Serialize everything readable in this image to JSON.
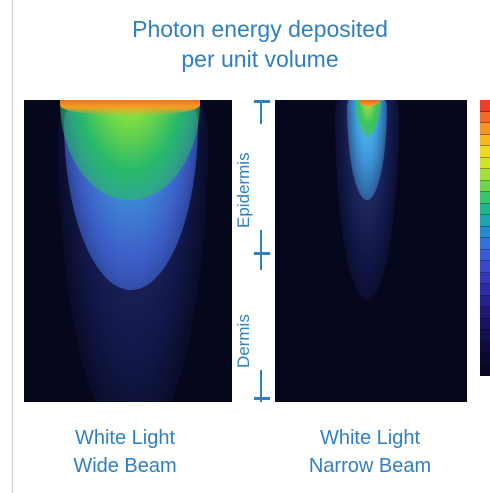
{
  "title": {
    "line1": "Photon energy deposited",
    "line2": "per unit volume"
  },
  "layers": {
    "upper": "Epidermis",
    "lower": "Dermis"
  },
  "panels": [
    {
      "line1": "White Light",
      "line2": "Wide Beam"
    },
    {
      "line1": "White Light",
      "line2": "Narrow Beam"
    }
  ],
  "colors": {
    "text": "#2f7fc2",
    "background": "#05081c",
    "colorbar": [
      "#e8402a",
      "#ef6a28",
      "#f39425",
      "#f5b822",
      "#f0d820",
      "#cde428",
      "#9fe03a",
      "#6cd44e",
      "#3cc46a",
      "#22b48c",
      "#1fa2b2",
      "#2a88d0",
      "#3570d8",
      "#3a5bd4",
      "#3b48c8",
      "#3638b6",
      "#2e2ca2",
      "#26228a",
      "#1e1a72",
      "#18155e",
      "#12104c",
      "#0e0c3e",
      "#0a0a30",
      "#070822"
    ]
  }
}
